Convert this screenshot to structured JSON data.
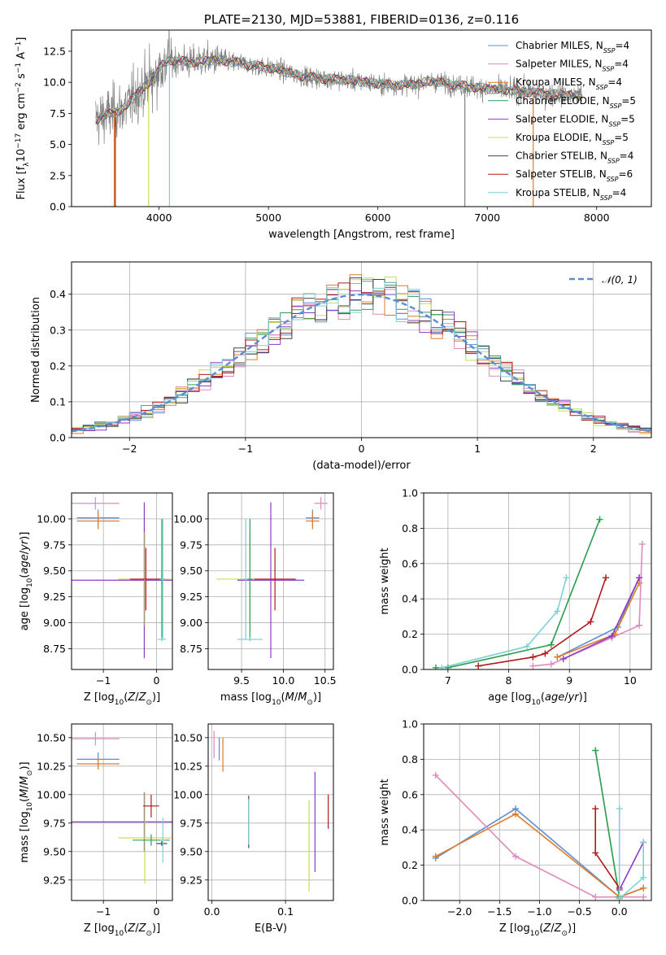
{
  "chart_data": [
    {
      "id": "spectrum",
      "type": "line",
      "title": "PLATE=2130, MJD=53881, FIBERID=0136, z=0.116",
      "xlabel": "wavelength [Angstrom, rest frame]",
      "ylabel_html": "Flux [f<tspan baseline-shift='sub' font-size='9'>λ</tspan>10<tspan baseline-shift='super' font-size='9'>−17</tspan> erg cm<tspan baseline-shift='super' font-size='9'>−2</tspan> s<tspan baseline-shift='super' font-size='9'>−1</tspan> A<tspan baseline-shift='super' font-size='9'>−1</tspan>]",
      "xlim": [
        3200,
        8500
      ],
      "ylim": [
        0,
        14.2
      ],
      "xticks": [
        4000,
        5000,
        6000,
        7000,
        8000
      ],
      "yticks": [
        0.0,
        2.5,
        5.0,
        7.5,
        10.0,
        12.5
      ],
      "grid": false,
      "legend_position": "right",
      "spectrum_continuum": [
        [
          3420,
          7.0
        ],
        [
          3500,
          7.3
        ],
        [
          3600,
          7.6
        ],
        [
          3700,
          8.0
        ],
        [
          3800,
          9.2
        ],
        [
          3900,
          9.8
        ],
        [
          4000,
          11.2
        ],
        [
          4100,
          11.8
        ],
        [
          4300,
          11.6
        ],
        [
          4500,
          11.8
        ],
        [
          4700,
          11.6
        ],
        [
          4900,
          11.3
        ],
        [
          5100,
          11.0
        ],
        [
          5300,
          10.5
        ],
        [
          5500,
          10.3
        ],
        [
          5700,
          10.2
        ],
        [
          5900,
          10.0
        ],
        [
          6100,
          9.8
        ],
        [
          6300,
          9.8
        ],
        [
          6500,
          10.1
        ],
        [
          6700,
          9.8
        ],
        [
          6900,
          9.6
        ],
        [
          7100,
          9.4
        ],
        [
          7300,
          9.3
        ],
        [
          7500,
          9.1
        ],
        [
          7700,
          9.0
        ],
        [
          7860,
          8.9
        ]
      ],
      "series": [
        {
          "name": "Chabrier MILES",
          "nssp": "4",
          "color": "#5b8ed6"
        },
        {
          "name": "Salpeter MILES",
          "nssp": "4",
          "color": "#e08abd"
        },
        {
          "name": "Kroupa MILES",
          "nssp": "4",
          "color": "#e07b28"
        },
        {
          "name": "Chabrier ELODIE",
          "nssp": "5",
          "color": "#2e9e5b"
        },
        {
          "name": "Salpeter ELODIE",
          "nssp": "5",
          "color": "#8b3cc6"
        },
        {
          "name": "Kroupa ELODIE",
          "nssp": "5",
          "color": "#c8dc58"
        },
        {
          "name": "Chabrier STELIB",
          "nssp": "4",
          "color": "#444444"
        },
        {
          "name": "Salpeter STELIB",
          "nssp": "6",
          "color": "#b01a1a"
        },
        {
          "name": "Kroupa STELIB",
          "nssp": "4",
          "color": "#7ed0d8"
        }
      ]
    },
    {
      "id": "residuals",
      "type": "line",
      "xlabel": "(data-model)/error",
      "ylabel": "Normed distribution",
      "xlim": [
        -2.5,
        2.5
      ],
      "ylim": [
        0,
        0.49
      ],
      "xticks": [
        -2,
        -1,
        0,
        1,
        2
      ],
      "yticks": [
        0.0,
        0.1,
        0.2,
        0.3,
        0.4
      ],
      "grid": true,
      "legend_position": "top-right",
      "gaussian_label": "𝒩(0, 1)",
      "gaussian_color": "#5b8ed6"
    },
    {
      "id": "age_vs_Z",
      "type": "scatter",
      "xlabel_html": "Z [log<tspan baseline-shift='sub' font-size='9'>10</tspan>(<tspan font-style='italic'>Z</tspan>/<tspan font-style='italic'>Z</tspan><tspan baseline-shift='sub' font-size='9'>⊙</tspan>)]",
      "ylabel_html": "age  [log<tspan baseline-shift='sub' font-size='9'>10</tspan>(<tspan font-style='italic'>age</tspan>/<tspan font-style='italic'>yr</tspan>)]",
      "xlim": [
        -1.6,
        0.3
      ],
      "ylim": [
        8.55,
        10.25
      ],
      "xticks": [
        -1,
        0
      ],
      "yticks": [
        8.75,
        9.0,
        9.25,
        9.5,
        9.75,
        10.0
      ],
      "grid": true,
      "points": [
        {
          "x": -1.15,
          "y": 10.15,
          "xerr": 0.45,
          "yerr": 0.06,
          "color": "#e08abd"
        },
        {
          "x": -1.1,
          "y": 10.01,
          "xerr": 0.4,
          "yerr": 0.08,
          "color": "#5b8ed6"
        },
        {
          "x": -1.1,
          "y": 9.98,
          "xerr": 0.4,
          "yerr": 0.08,
          "color": "#e07b28"
        },
        {
          "x": -0.23,
          "y": 9.41,
          "xerr": 1.4,
          "yerr": 0.75,
          "color": "#8b3cc6"
        },
        {
          "x": -0.22,
          "y": 9.42,
          "xerr": 0.5,
          "yerr": 0.45,
          "color": "#c8dc58"
        },
        {
          "x": -0.2,
          "y": 9.42,
          "xerr": 0.3,
          "yerr": 0.3,
          "color": "#b01a1a"
        },
        {
          "x": 0.1,
          "y": 9.42,
          "xerr": 0.05,
          "yerr": 0.58,
          "color": "#2e9e5b"
        },
        {
          "x": 0.1,
          "y": 8.84,
          "xerr": 0.08,
          "yerr": 0.02,
          "color": "#7ed0d8"
        },
        {
          "x": 0.12,
          "y": 9.42,
          "xerr": 0.04,
          "yerr": 0.58,
          "color": "#7ed0d8"
        }
      ]
    },
    {
      "id": "age_vs_mass",
      "type": "scatter",
      "xlabel_html": "mass [log<tspan baseline-shift='sub' font-size='9'>10</tspan>(<tspan font-style='italic'>M</tspan>/<tspan font-style='italic'>M</tspan><tspan baseline-shift='sub' font-size='9'>⊙</tspan>)]",
      "xlim": [
        9.1,
        10.6
      ],
      "ylim": [
        8.55,
        10.25
      ],
      "xticks": [
        9.5,
        10.0,
        10.5
      ],
      "yticks": [
        8.75,
        9.0,
        9.25,
        9.5,
        9.75,
        10.0
      ],
      "grid": true,
      "points": [
        {
          "x": 10.45,
          "y": 10.15,
          "xerr": 0.08,
          "yerr": 0.06,
          "color": "#e08abd"
        },
        {
          "x": 10.35,
          "y": 10.01,
          "xerr": 0.08,
          "yerr": 0.08,
          "color": "#5b8ed6"
        },
        {
          "x": 10.35,
          "y": 9.98,
          "xerr": 0.08,
          "yerr": 0.08,
          "color": "#e07b28"
        },
        {
          "x": 9.85,
          "y": 9.41,
          "xerr": 0.4,
          "yerr": 0.75,
          "color": "#8b3cc6"
        },
        {
          "x": 9.6,
          "y": 9.42,
          "xerr": 0.4,
          "yerr": 0.45,
          "color": "#c8dc58"
        },
        {
          "x": 9.9,
          "y": 9.42,
          "xerr": 0.25,
          "yerr": 0.3,
          "color": "#b01a1a"
        },
        {
          "x": 9.6,
          "y": 9.42,
          "xerr": 0.03,
          "yerr": 0.58,
          "color": "#2e9e5b"
        },
        {
          "x": 9.6,
          "y": 8.84,
          "xerr": 0.15,
          "yerr": 0.02,
          "color": "#7ed0d8"
        },
        {
          "x": 9.55,
          "y": 9.42,
          "xerr": 0.03,
          "yerr": 0.58,
          "color": "#7ed0d8"
        }
      ]
    },
    {
      "id": "weight_vs_age",
      "type": "line",
      "xlabel_html": "age  [log<tspan baseline-shift='sub' font-size='9'>10</tspan>(<tspan font-style='italic'>age</tspan>/<tspan font-style='italic'>yr</tspan>)]",
      "ylabel": "mass weight",
      "xlim": [
        6.6,
        10.35
      ],
      "ylim": [
        0,
        1.0
      ],
      "xticks": [
        7,
        8,
        9,
        10
      ],
      "yticks": [
        0.0,
        0.2,
        0.4,
        0.6,
        0.8,
        1.0
      ],
      "grid": true,
      "series": [
        {
          "color": "#c8dc58",
          "x": [
            6.8,
            7.0,
            8.7,
            9.5
          ],
          "y": [
            0.01,
            0.01,
            0.14,
            0.85
          ]
        },
        {
          "color": "#2e9e5b",
          "x": [
            6.8,
            7.0,
            8.7,
            9.5
          ],
          "y": [
            0.01,
            0.01,
            0.14,
            0.85
          ]
        },
        {
          "color": "#7ed0d8",
          "x": [
            6.9,
            8.3,
            8.8,
            8.95
          ],
          "y": [
            0.01,
            0.13,
            0.33,
            0.52
          ]
        },
        {
          "color": "#5b8ed6",
          "x": [
            8.8,
            9.8,
            10.15
          ],
          "y": [
            0.07,
            0.24,
            0.52
          ]
        },
        {
          "color": "#e07b28",
          "x": [
            8.8,
            9.75,
            10.15
          ],
          "y": [
            0.07,
            0.2,
            0.49
          ]
        },
        {
          "color": "#e08abd",
          "x": [
            8.4,
            8.7,
            9.7,
            10.15,
            10.2
          ],
          "y": [
            0.02,
            0.03,
            0.18,
            0.25,
            0.71
          ]
        },
        {
          "color": "#8b3cc6",
          "x": [
            8.9,
            9.7,
            10.15
          ],
          "y": [
            0.06,
            0.19,
            0.52
          ]
        },
        {
          "color": "#b01a1a",
          "x": [
            7.5,
            8.4,
            8.6,
            9.35,
            9.6
          ],
          "y": [
            0.02,
            0.07,
            0.09,
            0.27,
            0.52
          ]
        }
      ]
    },
    {
      "id": "mass_vs_Z",
      "type": "scatter",
      "xlabel_html": "Z [log<tspan baseline-shift='sub' font-size='9'>10</tspan>(<tspan font-style='italic'>Z</tspan>/<tspan font-style='italic'>Z</tspan><tspan baseline-shift='sub' font-size='9'>⊙</tspan>)]",
      "ylabel_html": "mass [log<tspan baseline-shift='sub' font-size='9'>10</tspan>(<tspan font-style='italic'>M</tspan>/<tspan font-style='italic'>M</tspan><tspan baseline-shift='sub' font-size='9'>⊙</tspan>)]",
      "xlim": [
        -1.6,
        0.3
      ],
      "ylim": [
        9.07,
        10.62
      ],
      "xticks": [
        -1,
        0
      ],
      "yticks": [
        9.25,
        9.5,
        9.75,
        10.0,
        10.25,
        10.5
      ],
      "grid": true,
      "points": [
        {
          "x": -1.15,
          "y": 10.49,
          "xerr": 0.45,
          "yerr": 0.06,
          "color": "#e08abd"
        },
        {
          "x": -1.1,
          "y": 10.31,
          "xerr": 0.4,
          "yerr": 0.06,
          "color": "#5b8ed6"
        },
        {
          "x": -1.1,
          "y": 10.27,
          "xerr": 0.4,
          "yerr": 0.05,
          "color": "#e07b28"
        },
        {
          "x": -0.23,
          "y": 9.76,
          "xerr": 1.4,
          "yerr": 0.26,
          "color": "#8b3cc6"
        },
        {
          "x": -0.22,
          "y": 9.62,
          "xerr": 0.5,
          "yerr": 0.4,
          "color": "#c8dc58"
        },
        {
          "x": -0.1,
          "y": 9.9,
          "xerr": 0.15,
          "yerr": 0.1,
          "color": "#b01a1a"
        },
        {
          "x": -0.1,
          "y": 9.6,
          "xerr": 0.35,
          "yerr": 0.05,
          "color": "#2e9e5b"
        },
        {
          "x": 0.1,
          "y": 9.57,
          "xerr": 0.1,
          "yerr": 0.02,
          "color": "#444444"
        },
        {
          "x": 0.12,
          "y": 9.6,
          "xerr": 0.05,
          "yerr": 0.2,
          "color": "#7ed0d8"
        }
      ]
    },
    {
      "id": "mass_vs_EBV",
      "type": "scatter",
      "xlabel": "E(B-V)",
      "xlim": [
        -0.005,
        0.165
      ],
      "ylim": [
        9.07,
        10.62
      ],
      "xticks": [
        0.0,
        0.1
      ],
      "yticks": [
        9.25,
        9.5,
        9.75,
        10.0,
        10.25,
        10.5
      ],
      "grid": true,
      "points": [
        {
          "x": 0.003,
          "y": 10.44,
          "xerr": 0,
          "yerr": 0.12,
          "color": "#e08abd"
        },
        {
          "x": 0.01,
          "y": 10.4,
          "xerr": 0,
          "yerr": 0.1,
          "color": "#5b8ed6"
        },
        {
          "x": 0.015,
          "y": 10.35,
          "xerr": 0,
          "yerr": 0.15,
          "color": "#e07b28"
        },
        {
          "x": 0.05,
          "y": 9.76,
          "xerr": 0,
          "yerr": 0.23,
          "color": "#444444"
        },
        {
          "x": 0.05,
          "y": 9.76,
          "xerr": 0,
          "yerr": 0.2,
          "color": "#7ed0d8"
        },
        {
          "x": 0.132,
          "y": 9.55,
          "xerr": 0,
          "yerr": 0.4,
          "color": "#c8dc58"
        },
        {
          "x": 0.14,
          "y": 9.76,
          "xerr": 0,
          "yerr": 0.44,
          "color": "#8b3cc6"
        },
        {
          "x": 0.158,
          "y": 9.85,
          "xerr": 0,
          "yerr": 0.15,
          "color": "#b01a1a"
        }
      ]
    },
    {
      "id": "weight_vs_Z",
      "type": "line",
      "xlabel_html": "Z [log<tspan baseline-shift='sub' font-size='9'>10</tspan>(<tspan font-style='italic'>Z</tspan>/<tspan font-style='italic'>Z</tspan><tspan baseline-shift='sub' font-size='9'>⊙</tspan>)]",
      "ylabel": "mass weight",
      "xlim": [
        -2.45,
        0.4
      ],
      "ylim": [
        0,
        1.0
      ],
      "xticks": [
        -2.0,
        -1.5,
        -1.0,
        -0.5,
        0.0
      ],
      "yticks": [
        0.0,
        0.2,
        0.4,
        0.6,
        0.8,
        1.0
      ],
      "grid": true,
      "series": [
        {
          "color": "#5b8ed6",
          "x": [
            -2.3,
            -1.3,
            0.0,
            0.3
          ],
          "y": [
            0.24,
            0.52,
            0.02,
            0.07
          ]
        },
        {
          "color": "#e07b28",
          "x": [
            -2.3,
            -1.3,
            0.0,
            0.3
          ],
          "y": [
            0.25,
            0.49,
            0.02,
            0.07
          ]
        },
        {
          "color": "#e08abd",
          "x": [
            -2.3,
            -1.3,
            -0.3,
            0.0,
            0.3
          ],
          "y": [
            0.71,
            0.25,
            0.02,
            0.02,
            0.02
          ]
        },
        {
          "color": "#c8dc58",
          "x": [
            -0.3,
            -0.3,
            0.0,
            0.0
          ],
          "y": [
            0.85,
            0.85,
            0.01,
            0.01
          ]
        },
        {
          "color": "#2e9e5b",
          "x": [
            -0.3,
            0.0,
            0.0
          ],
          "y": [
            0.85,
            0.02,
            0.02
          ]
        },
        {
          "color": "#b01a1a",
          "x": [
            -0.3,
            -0.3,
            0.0,
            0.0
          ],
          "y": [
            0.52,
            0.27,
            0.07,
            0.01
          ]
        },
        {
          "color": "#8b3cc6",
          "x": [
            0.0,
            0.3
          ],
          "y": [
            0.06,
            0.33
          ]
        },
        {
          "color": "#7ed0d8",
          "x": [
            0.0,
            0.0,
            0.3,
            0.3
          ],
          "y": [
            0.52,
            0.01,
            0.13,
            0.33
          ]
        }
      ]
    }
  ]
}
